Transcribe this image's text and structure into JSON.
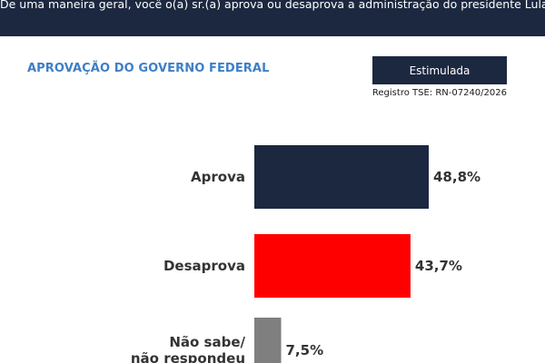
{
  "header": {
    "question": "De uma maneira geral, você o(a) sr.(a) aprova ou desaprova a administração do presidente Lula?"
  },
  "section_title": "APROVAÇÃO DO GOVERNO FEDERAL",
  "badge_label": "Estimulada",
  "registro": "Registro TSE: RN-07240/2026",
  "chart_data": {
    "type": "bar",
    "orientation": "horizontal",
    "categories": [
      [
        "Aprova"
      ],
      [
        "Desaprova"
      ],
      [
        "Não sabe/",
        "não respondeu"
      ]
    ],
    "values": [
      48.8,
      43.7,
      7.5
    ],
    "value_labels": [
      "48,8%",
      "43,7%",
      "7,5%"
    ],
    "colors": [
      "#1c2840",
      "#ff0000",
      "#7f7f7f"
    ]
  }
}
